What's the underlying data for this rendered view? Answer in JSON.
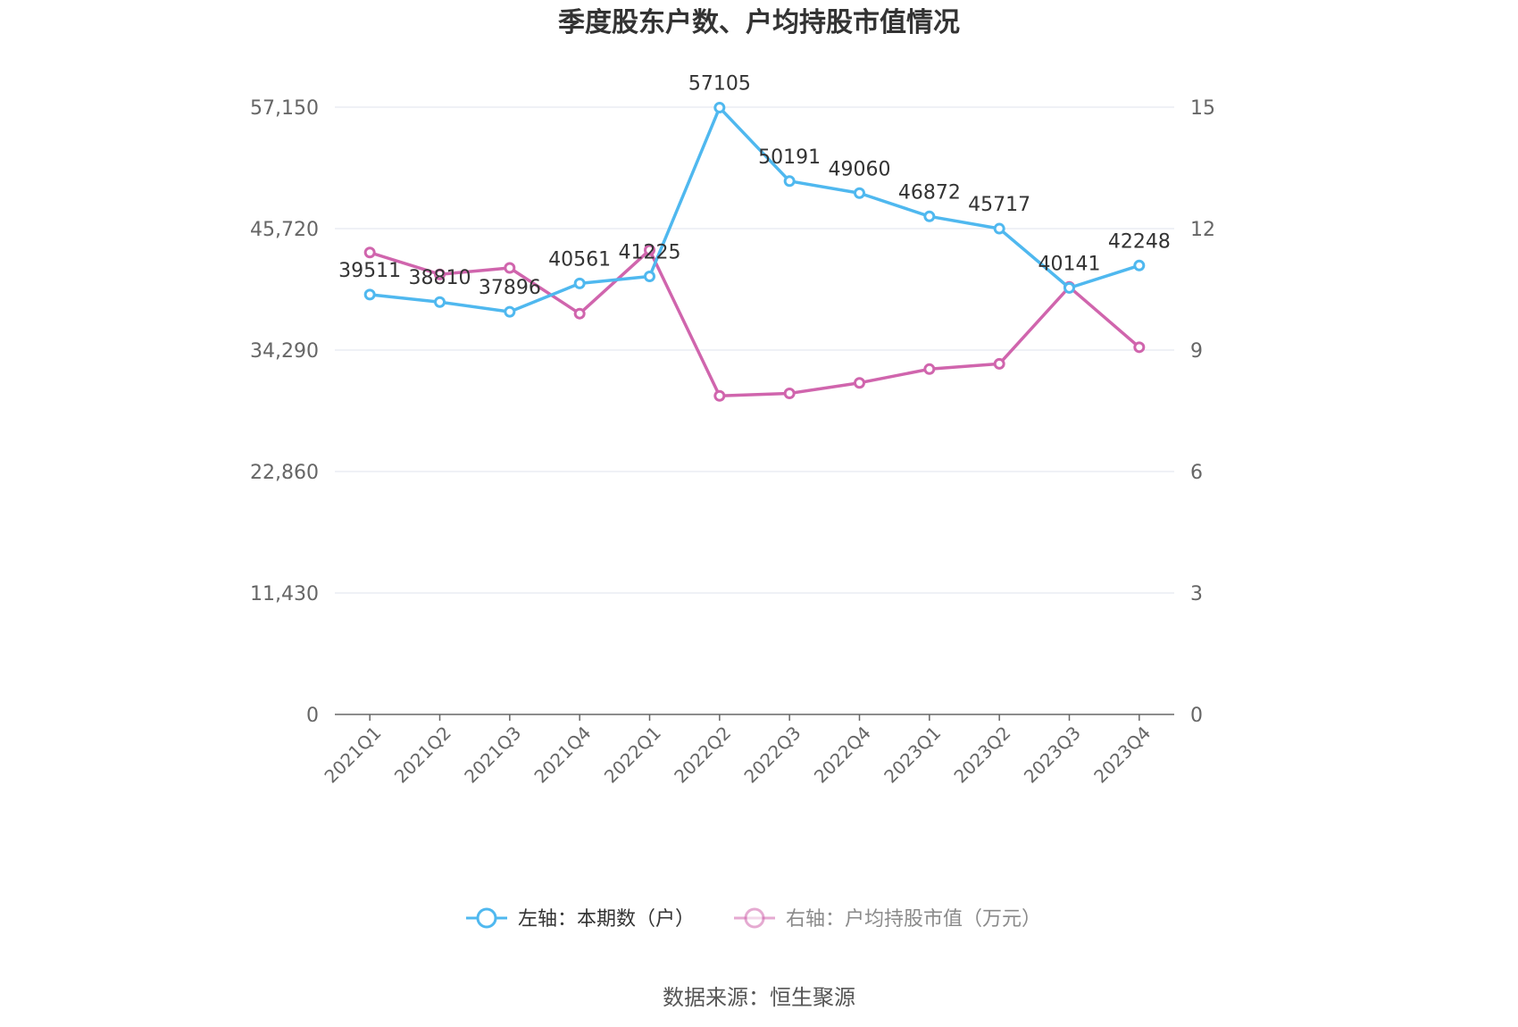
{
  "chart_data": {
    "type": "line",
    "title": "季度股东户数、户均持股市值情况",
    "categories": [
      "2021Q1",
      "2021Q2",
      "2021Q3",
      "2021Q4",
      "2022Q1",
      "2022Q2",
      "2022Q3",
      "2022Q4",
      "2023Q1",
      "2023Q2",
      "2023Q3",
      "2023Q4"
    ],
    "y_left": {
      "ylim": [
        0,
        57150
      ],
      "ticks": [
        "0",
        "11,430",
        "22,860",
        "34,290",
        "45,720",
        "57,150"
      ]
    },
    "y_right": {
      "ylim": [
        0,
        15
      ],
      "ticks": [
        "0",
        "3",
        "6",
        "9",
        "12",
        "15"
      ]
    },
    "series": [
      {
        "name": "左轴：本期数（户）",
        "axis": "left",
        "color": "#4fb8ef",
        "values": [
          39511,
          38810,
          37896,
          40561,
          41225,
          57105,
          50191,
          49060,
          46872,
          45717,
          40141,
          42248
        ],
        "labels": [
          "39511",
          "38810",
          "37896",
          "40561",
          "41225",
          "57105",
          "50191",
          "49060",
          "46872",
          "45717",
          "40141",
          "42248"
        ]
      },
      {
        "name": "右轴：户均持股市值（万元）",
        "axis": "right",
        "color": "#d065ad",
        "values": [
          11.41,
          10.87,
          11.03,
          9.9,
          11.47,
          7.87,
          7.93,
          8.19,
          8.53,
          8.66,
          10.56,
          9.07
        ]
      }
    ],
    "grid": true,
    "legend": "bottom"
  },
  "source": "数据来源：恒生聚源"
}
